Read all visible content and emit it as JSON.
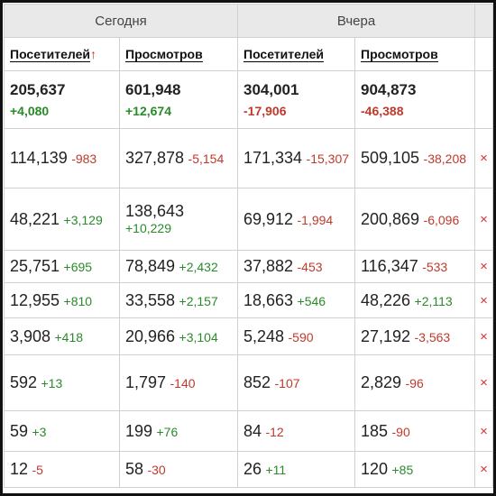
{
  "header": {
    "groups": [
      "Сегодня",
      "Вчера"
    ],
    "columns": [
      "Посетителей",
      "Просмотров",
      "Посетителей",
      "Просмотров"
    ],
    "sort_arrow": "↑"
  },
  "totals": [
    [
      "205,637",
      "+4,080"
    ],
    [
      "601,948",
      "+12,674"
    ],
    [
      "304,001",
      "-17,906"
    ],
    [
      "904,873",
      "-46,388"
    ]
  ],
  "table": {
    "remove_icon": "×",
    "rows": [
      [
        [
          "114,139",
          "-983"
        ],
        [
          "327,878",
          "-5,154"
        ],
        [
          "171,334",
          "-15,307"
        ],
        [
          "509,105",
          "-38,208"
        ]
      ],
      [
        [
          "48,221",
          "+3,129"
        ],
        [
          "138,643",
          "+10,229"
        ],
        [
          "69,912",
          "-1,994"
        ],
        [
          "200,869",
          "-6,096"
        ]
      ],
      [
        [
          "25,751",
          "+695"
        ],
        [
          "78,849",
          "+2,432"
        ],
        [
          "37,882",
          "-453"
        ],
        [
          "116,347",
          "-533"
        ]
      ],
      [
        [
          "12,955",
          "+810"
        ],
        [
          "33,558",
          "+2,157"
        ],
        [
          "18,663",
          "+546"
        ],
        [
          "48,226",
          "+2,113"
        ]
      ],
      [
        [
          "3,908",
          "+418"
        ],
        [
          "20,966",
          "+3,104"
        ],
        [
          "5,248",
          "-590"
        ],
        [
          "27,192",
          "-3,563"
        ]
      ],
      [
        [
          "592",
          "+13"
        ],
        [
          "1,797",
          "-140"
        ],
        [
          "852",
          "-107"
        ],
        [
          "2,829",
          "-96"
        ]
      ],
      [
        [
          "59",
          "+3"
        ],
        [
          "199",
          "+76"
        ],
        [
          "84",
          "-12"
        ],
        [
          "185",
          "-90"
        ]
      ],
      [
        [
          "12",
          "-5"
        ],
        [
          "58",
          "-30"
        ],
        [
          "26",
          "+11"
        ],
        [
          "120",
          "+85"
        ]
      ]
    ]
  }
}
